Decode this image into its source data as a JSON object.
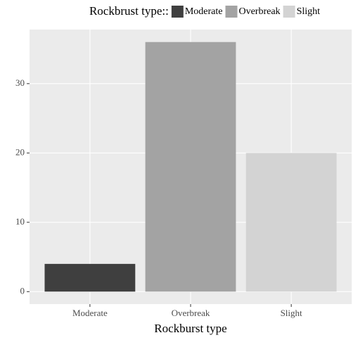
{
  "chart_data": {
    "type": "bar",
    "legend_title": "Rockbrust type::",
    "x_label": "Rockburst type",
    "categories": [
      "Moderate",
      "Overbreak",
      "Slight"
    ],
    "values": [
      4,
      36,
      20
    ],
    "colors": [
      "#3f3f3f",
      "#a3a3a3",
      "#d3d3d3"
    ],
    "ylim": [
      -1.8,
      37.8
    ],
    "yticks": [
      0,
      10,
      20,
      30
    ],
    "grid": true,
    "legend_position": "top"
  }
}
